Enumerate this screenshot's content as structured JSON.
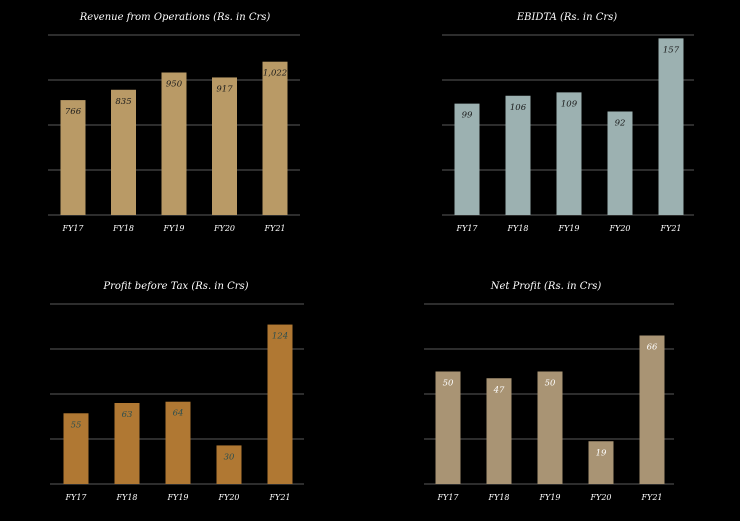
{
  "chart_data": [
    {
      "type": "bar",
      "title": "Revenue from Operations (Rs. in Crs)",
      "categories": [
        "FY17",
        "FY18",
        "FY19",
        "FY20",
        "FY21"
      ],
      "values": [
        766,
        835,
        950,
        917,
        1022
      ],
      "data_labels": [
        "766",
        "835",
        "950",
        "917",
        "1,022"
      ],
      "ylim": [
        0,
        1200
      ],
      "grid": true,
      "colors": {
        "bar": "#b99a66",
        "label": "#1a1a1a"
      }
    },
    {
      "type": "bar",
      "title": "EBIDTA (Rs. in Crs)",
      "categories": [
        "FY17",
        "FY18",
        "FY19",
        "FY20",
        "FY21"
      ],
      "values": [
        99,
        106,
        109,
        92,
        157
      ],
      "data_labels": [
        "99",
        "106",
        "109",
        "92",
        "157"
      ],
      "ylim": [
        0,
        160
      ],
      "grid": true,
      "colors": {
        "bar": "#9cb1b1",
        "label": "#1a1a1a"
      }
    },
    {
      "type": "bar",
      "title": "Profit before Tax (Rs. in Crs)",
      "categories": [
        "FY17",
        "FY18",
        "FY19",
        "FY20",
        "FY21"
      ],
      "values": [
        55,
        63,
        64,
        30,
        124
      ],
      "data_labels": [
        "55",
        "63",
        "64",
        "30",
        "124"
      ],
      "ylim": [
        0,
        140
      ],
      "grid": true,
      "colors": {
        "bar": "#b07833",
        "label": "#2d4f4f"
      }
    },
    {
      "type": "bar",
      "title": "Net Profit (Rs. in Crs)",
      "categories": [
        "FY17",
        "FY18",
        "FY19",
        "FY20",
        "FY21"
      ],
      "values": [
        50,
        47,
        50,
        19,
        66
      ],
      "data_labels": [
        "50",
        "47",
        "50",
        "19",
        "66"
      ],
      "ylim": [
        0,
        80
      ],
      "grid": true,
      "colors": {
        "bar": "#a99474",
        "label": "#ffffff"
      }
    }
  ]
}
